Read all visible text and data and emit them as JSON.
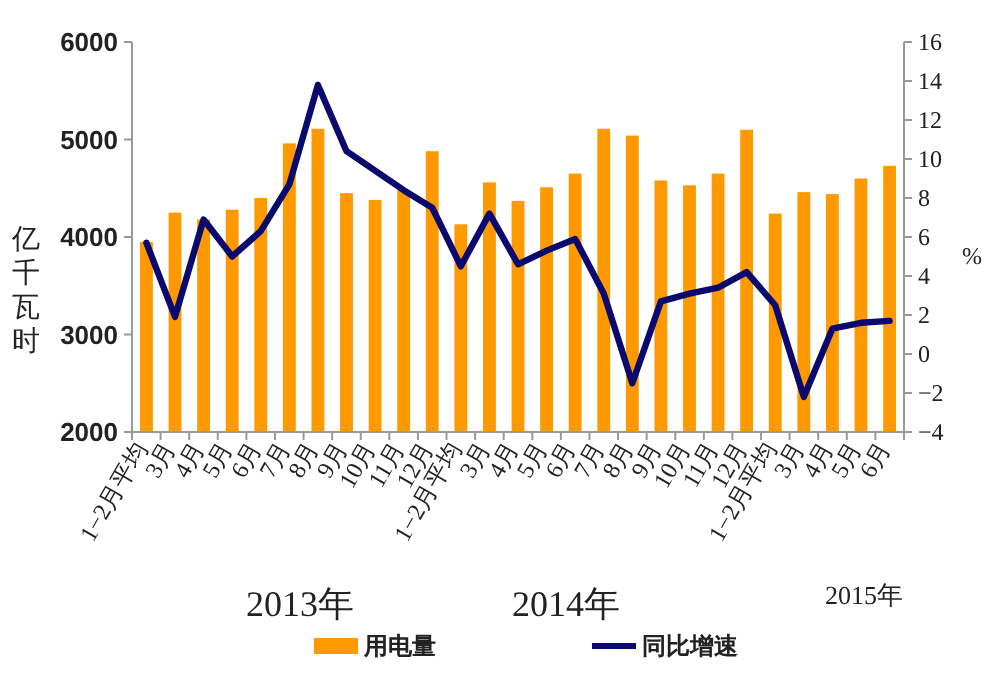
{
  "chart_data": {
    "type": "bar",
    "ylabel": "亿千瓦时",
    "y2label": "%",
    "categories": [
      "1−2月平均",
      "3月",
      "4月",
      "5月",
      "6月",
      "7月",
      "8月",
      "9月",
      "10月",
      "11月",
      "12月",
      "1−2月平均",
      "3月",
      "4月",
      "5月",
      "6月",
      "7月",
      "8月",
      "9月",
      "10月",
      "11月",
      "12月",
      "1−2月平均",
      "3月",
      "4月",
      "5月",
      "6月"
    ],
    "series": [
      {
        "name": "用电量",
        "color": "#ff9900",
        "values": [
          3950,
          4250,
          4180,
          4280,
          4400,
          4960,
          5110,
          4450,
          4380,
          4480,
          4880,
          4130,
          4560,
          4370,
          4510,
          4650,
          5110,
          5040,
          4580,
          4530,
          4650,
          5100,
          4240,
          4460,
          4440,
          4600,
          4730
        ]
      },
      {
        "name": "同比增速",
        "type": "line",
        "axis": "y2",
        "color": "#0a0a6e",
        "values": [
          5.7,
          1.9,
          6.9,
          5.0,
          6.3,
          8.7,
          13.8,
          10.4,
          9.4,
          8.4,
          7.5,
          4.5,
          7.2,
          4.6,
          5.3,
          5.9,
          3.1,
          -1.5,
          2.7,
          3.1,
          3.4,
          4.2,
          2.5,
          -2.2,
          1.3,
          1.6,
          1.7
        ]
      }
    ],
    "ylim": [
      2000,
      6000
    ],
    "yticks": [
      2000,
      3000,
      4000,
      5000,
      6000
    ],
    "y2lim": [
      -4,
      16
    ],
    "y2ticks": [
      -4,
      -2,
      0,
      2,
      4,
      6,
      8,
      10,
      12,
      14,
      16
    ],
    "grid": false,
    "legend": "bottom",
    "line_style": "solid",
    "marker": "none",
    "annotations": [
      "2013年",
      "2014年",
      "2015年"
    ]
  }
}
